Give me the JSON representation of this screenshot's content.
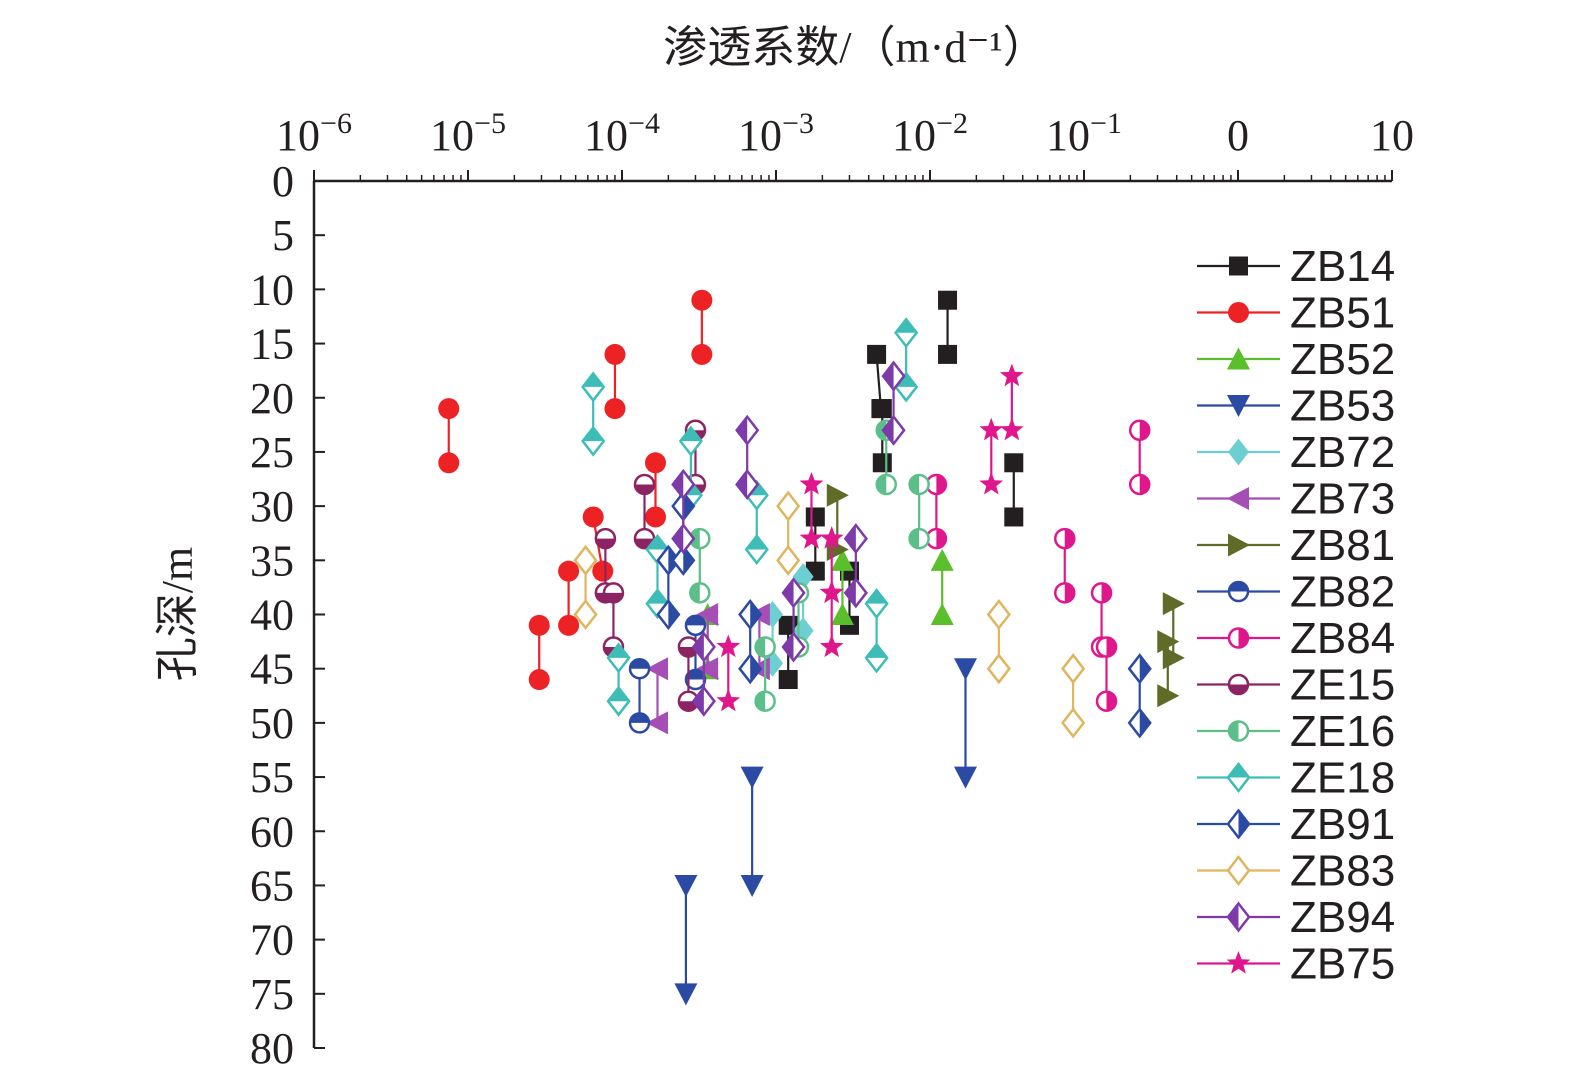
{
  "chart_data": {
    "type": "scatter",
    "title": "",
    "xlabel": "渗透系数/（m·d⁻¹）",
    "ylabel": "孔深/m",
    "x_scale": "log",
    "x_axis_position": "top",
    "xlim": [
      1e-06,
      10
    ],
    "ylim": [
      80,
      0
    ],
    "y_inverted": true,
    "x_ticks": [
      {
        "value": 1e-06,
        "label": "10",
        "exp": "−6"
      },
      {
        "value": 1e-05,
        "label": "10",
        "exp": "−5"
      },
      {
        "value": 0.0001,
        "label": "10",
        "exp": "−4"
      },
      {
        "value": 0.001,
        "label": "10",
        "exp": "−3"
      },
      {
        "value": 0.01,
        "label": "10",
        "exp": "−2"
      },
      {
        "value": 0.1,
        "label": "10",
        "exp": "−1"
      },
      {
        "value": 1,
        "label": "0",
        "exp": ""
      },
      {
        "value": 10,
        "label": "10",
        "exp": ""
      }
    ],
    "y_ticks": [
      0,
      5,
      10,
      15,
      20,
      25,
      30,
      35,
      40,
      45,
      50,
      55,
      60,
      65,
      70,
      75,
      80
    ],
    "grid": false,
    "legend_position": "right",
    "series": [
      {
        "name": "ZB14",
        "color": "#231f20",
        "marker": "square-filled",
        "pairs": [
          [
            [
              0.013,
              11
            ],
            [
              0.013,
              16
            ]
          ],
          [
            [
              0.0045,
              16
            ],
            [
              0.0048,
              21
            ]
          ],
          [
            [
              0.0049,
              21
            ],
            [
              0.0049,
              26
            ]
          ],
          [
            [
              0.035,
              26
            ],
            [
              0.035,
              31
            ]
          ],
          [
            [
              0.0018,
              31
            ],
            [
              0.0018,
              36
            ]
          ],
          [
            [
              0.003,
              36
            ],
            [
              0.003,
              41
            ]
          ],
          [
            [
              0.0012,
              41
            ],
            [
              0.0012,
              46
            ]
          ]
        ]
      },
      {
        "name": "ZB51",
        "color": "#ed2224",
        "marker": "circle-filled",
        "pairs": [
          [
            [
              7.5e-06,
              21
            ],
            [
              7.5e-06,
              26
            ]
          ],
          [
            [
              0.00033,
              11
            ],
            [
              0.00033,
              16
            ]
          ],
          [
            [
              9e-05,
              16
            ],
            [
              9e-05,
              21
            ]
          ],
          [
            [
              0.000165,
              26
            ],
            [
              0.000165,
              31
            ]
          ],
          [
            [
              6.5e-05,
              31
            ],
            [
              7.5e-05,
              36
            ]
          ],
          [
            [
              4.5e-05,
              36
            ],
            [
              4.5e-05,
              41
            ]
          ],
          [
            [
              2.9e-05,
              41
            ],
            [
              2.9e-05,
              46
            ]
          ]
        ]
      },
      {
        "name": "ZB52",
        "color": "#5bbf2b",
        "marker": "triangle-up-filled",
        "pairs": [
          [
            [
              0.012,
              35
            ],
            [
              0.012,
              40
            ]
          ],
          [
            [
              0.00036,
              40
            ],
            [
              0.00036,
              45
            ]
          ],
          [
            [
              0.0027,
              35
            ],
            [
              0.0027,
              40
            ]
          ]
        ]
      },
      {
        "name": "ZB53",
        "color": "#2b4aa3",
        "marker": "triangle-down-filled",
        "pairs": [
          [
            [
              0.00026,
              65
            ],
            [
              0.00026,
              75
            ]
          ],
          [
            [
              0.0007,
              55
            ],
            [
              0.0007,
              65
            ]
          ],
          [
            [
              0.017,
              45
            ],
            [
              0.017,
              55
            ]
          ]
        ]
      },
      {
        "name": "ZB72",
        "color": "#6ecfd3",
        "marker": "diamond-filled",
        "pairs": [
          [
            [
              0.0015,
              36.5
            ],
            [
              0.0015,
              41.5
            ]
          ],
          [
            [
              0.00095,
              40
            ],
            [
              0.00095,
              44.5
            ]
          ]
        ]
      },
      {
        "name": "ZB73",
        "color": "#a54fb6",
        "marker": "triangle-left-filled",
        "pairs": [
          [
            [
              0.00017,
              45
            ],
            [
              0.00017,
              50
            ]
          ],
          [
            [
              0.00036,
              40
            ],
            [
              0.00036,
              45
            ]
          ],
          [
            [
              0.00078,
              40
            ],
            [
              0.00078,
              45
            ]
          ]
        ]
      },
      {
        "name": "ZB81",
        "color": "#5f6b26",
        "marker": "triangle-right-filled",
        "pairs": [
          [
            [
              0.0025,
              29
            ],
            [
              0.0025,
              34
            ]
          ],
          [
            [
              0.38,
              39
            ],
            [
              0.38,
              44
            ]
          ],
          [
            [
              0.35,
              42.5
            ],
            [
              0.35,
              47.5
            ]
          ]
        ]
      },
      {
        "name": "ZB82",
        "color": "#2b4aa3",
        "marker": "circle-half-top",
        "pairs": [
          [
            [
              0.00013,
              45
            ],
            [
              0.00013,
              50
            ]
          ],
          [
            [
              0.0003,
              41
            ],
            [
              0.0003,
              46
            ]
          ]
        ]
      },
      {
        "name": "ZB84",
        "color": "#e0168c",
        "marker": "circle-half-right",
        "pairs": [
          [
            [
              0.23,
              23
            ],
            [
              0.23,
              28
            ]
          ],
          [
            [
              0.011,
              28
            ],
            [
              0.011,
              33
            ]
          ],
          [
            [
              0.075,
              33
            ],
            [
              0.075,
              38
            ]
          ],
          [
            [
              0.13,
              38
            ],
            [
              0.13,
              43
            ]
          ],
          [
            [
              0.14,
              43
            ],
            [
              0.14,
              48
            ]
          ]
        ]
      },
      {
        "name": "ZE15",
        "color": "#8c2363",
        "marker": "circle-half-bottom",
        "pairs": [
          [
            [
              7.8e-05,
              33
            ],
            [
              7.8e-05,
              38
            ]
          ],
          [
            [
              0.00014,
              28
            ],
            [
              0.00014,
              33
            ]
          ],
          [
            [
              0.0003,
              23
            ],
            [
              0.0003,
              28
            ]
          ],
          [
            [
              8.8e-05,
              38
            ],
            [
              8.8e-05,
              43
            ]
          ],
          [
            [
              0.00027,
              43
            ],
            [
              0.00027,
              48
            ]
          ]
        ]
      },
      {
        "name": "ZE16",
        "color": "#5cbf8a",
        "marker": "circle-half-left",
        "pairs": [
          [
            [
              0.00032,
              33
            ],
            [
              0.00032,
              38
            ]
          ],
          [
            [
              0.0052,
              23
            ],
            [
              0.0052,
              28
            ]
          ],
          [
            [
              0.0085,
              28
            ],
            [
              0.0085,
              33
            ]
          ],
          [
            [
              0.00085,
              43
            ],
            [
              0.00085,
              48
            ]
          ],
          [
            [
              0.0014,
              38
            ],
            [
              0.0014,
              43
            ]
          ]
        ]
      },
      {
        "name": "ZE18",
        "color": "#3ebdb8",
        "marker": "diamond-half-top",
        "pairs": [
          [
            [
              6.5e-05,
              19
            ],
            [
              6.5e-05,
              24
            ]
          ],
          [
            [
              0.00028,
              24
            ],
            [
              0.00028,
              29
            ]
          ],
          [
            [
              0.00075,
              29
            ],
            [
              0.00075,
              34
            ]
          ],
          [
            [
              0.00017,
              34
            ],
            [
              0.00017,
              39
            ]
          ],
          [
            [
              9.5e-05,
              44
            ],
            [
              9.5e-05,
              48
            ]
          ],
          [
            [
              0.0045,
              39
            ],
            [
              0.0045,
              44
            ]
          ],
          [
            [
              0.007,
              14
            ],
            [
              0.007,
              19
            ]
          ]
        ]
      },
      {
        "name": "ZB91",
        "color": "#2b4aa3",
        "marker": "diamond-half-right",
        "pairs": [
          [
            [
              0.0002,
              35
            ],
            [
              0.0002,
              40
            ]
          ],
          [
            [
              0.00025,
              30
            ],
            [
              0.00025,
              35
            ]
          ],
          [
            [
              0.00068,
              40
            ],
            [
              0.00068,
              45
            ]
          ],
          [
            [
              0.23,
              45
            ],
            [
              0.23,
              50
            ]
          ]
        ]
      },
      {
        "name": "ZB83",
        "color": "#dfb55e",
        "marker": "diamond-open",
        "pairs": [
          [
            [
              5.8e-05,
              35
            ],
            [
              5.8e-05,
              40
            ]
          ],
          [
            [
              0.0012,
              30
            ],
            [
              0.0012,
              35
            ]
          ],
          [
            [
              0.028,
              40
            ],
            [
              0.028,
              45
            ]
          ],
          [
            [
              0.085,
              45
            ],
            [
              0.085,
              50
            ]
          ]
        ]
      },
      {
        "name": "ZB94",
        "color": "#7d3aa8",
        "marker": "diamond-half-left",
        "pairs": [
          [
            [
              0.00065,
              23
            ],
            [
              0.00065,
              28
            ]
          ],
          [
            [
              0.00025,
              28
            ],
            [
              0.00025,
              33
            ]
          ],
          [
            [
              0.0058,
              18
            ],
            [
              0.0058,
              23
            ]
          ],
          [
            [
              0.0033,
              33
            ],
            [
              0.0033,
              38
            ]
          ],
          [
            [
              0.0013,
              38
            ],
            [
              0.0013,
              43
            ]
          ],
          [
            [
              0.00034,
              43
            ],
            [
              0.00034,
              48
            ]
          ]
        ]
      },
      {
        "name": "ZB75",
        "color": "#e0168c",
        "marker": "star-filled",
        "pairs": [
          [
            [
              0.0017,
              28
            ],
            [
              0.0017,
              33
            ]
          ],
          [
            [
              0.025,
              23
            ],
            [
              0.025,
              28
            ]
          ],
          [
            [
              0.034,
              18
            ],
            [
              0.034,
              23
            ]
          ],
          [
            [
              0.0023,
              33
            ],
            [
              0.0023,
              38
            ]
          ],
          [
            [
              0.00049,
              43
            ],
            [
              0.00049,
              48
            ]
          ],
          [
            [
              0.0023,
              38
            ],
            [
              0.0023,
              43
            ]
          ]
        ]
      }
    ]
  }
}
